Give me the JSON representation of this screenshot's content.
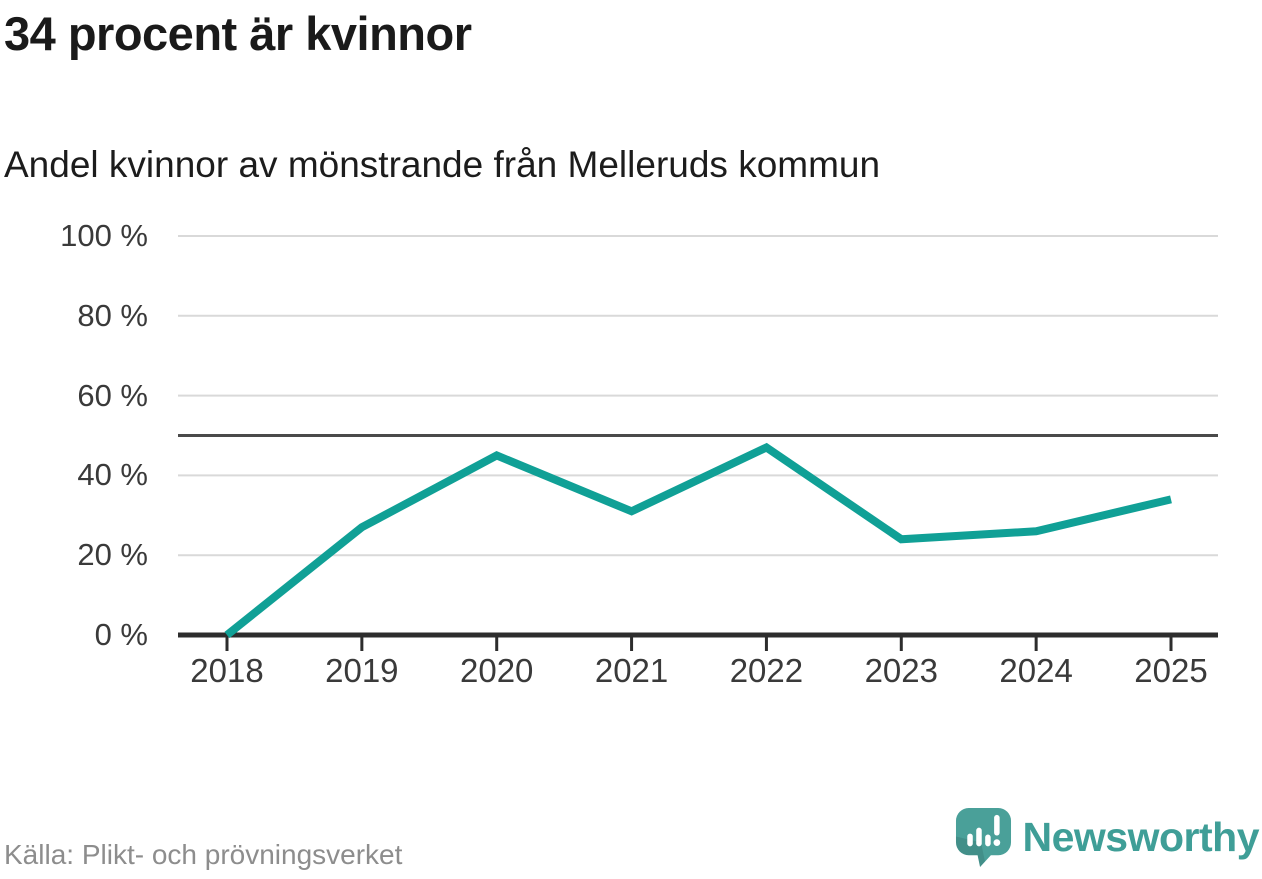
{
  "header": {
    "title": "34 procent är kvinnor",
    "subtitle": "Andel kvinnor av mönstrande från Melleruds kommun"
  },
  "footer": {
    "source": "Källa: Plikt- och prövningsverket",
    "brand_name": "Newsworthy"
  },
  "colors": {
    "line": "#10a096",
    "reference_line": "#4a4a4a",
    "gridline": "#d9d9d9",
    "axis": "#2d2d2d",
    "axis_text": "#3a3a3a",
    "title_text": "#1a1a1a",
    "source_text": "#8d8d8d",
    "brand_teal": "#3f9e97",
    "brand_icon_teal": "#4aa099"
  },
  "chart_data": {
    "type": "line",
    "title": "34 procent är kvinnor",
    "subtitle": "Andel kvinnor av mönstrande från Melleruds kommun",
    "x": [
      2018,
      2019,
      2020,
      2021,
      2022,
      2023,
      2024,
      2025
    ],
    "series": [
      {
        "name": "Andel kvinnor av mönstrande",
        "values": [
          0,
          27,
          45,
          31,
          47,
          24,
          26,
          34
        ]
      }
    ],
    "unit": "%",
    "ylim": [
      0,
      100
    ],
    "yticks": [
      {
        "value": 100,
        "label": "100 %"
      },
      {
        "value": 80,
        "label": "80 %"
      },
      {
        "value": 60,
        "label": "60 %"
      },
      {
        "value": 40,
        "label": "40 %"
      },
      {
        "value": 20,
        "label": "20 %"
      },
      {
        "value": 0,
        "label": "0 %"
      }
    ],
    "reference_line": {
      "value": 50
    },
    "grid": "horizontal",
    "legend": "none"
  }
}
